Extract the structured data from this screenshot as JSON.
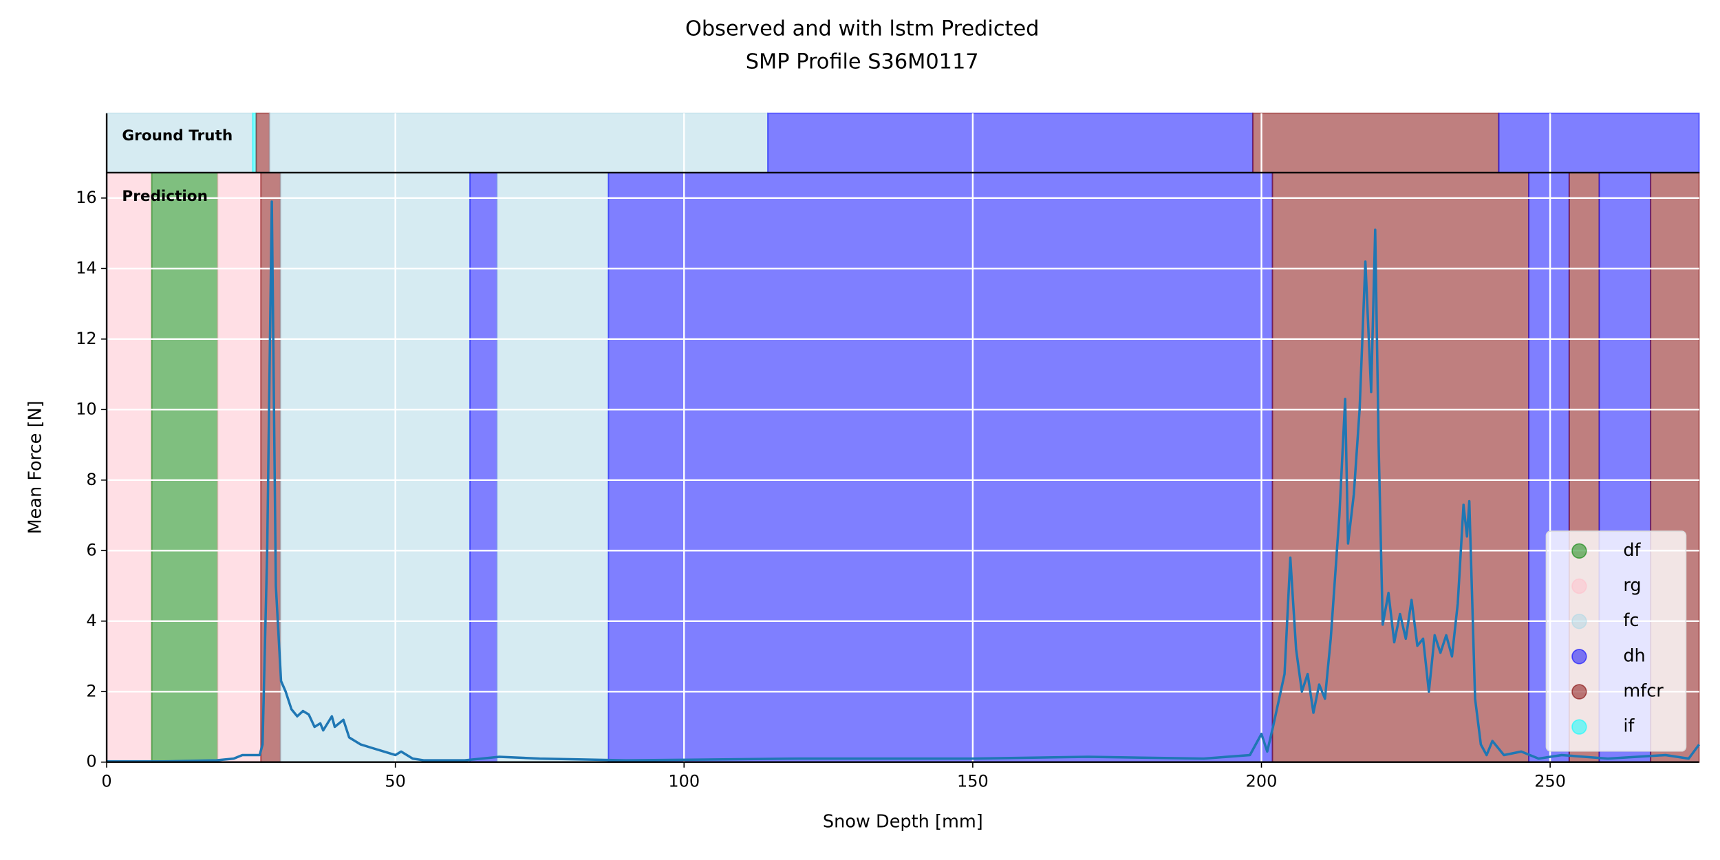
{
  "chart_data": {
    "type": "line",
    "title": "Observed and with lstm Predicted",
    "subtitle": "SMP Profile S36M0117",
    "x_label": "Snow Depth [mm]",
    "y_label": "Mean Force [N]",
    "xlim": [
      0,
      275.8
    ],
    "ylim": [
      0,
      16.72
    ],
    "xticks": [
      0,
      50,
      100,
      150,
      200,
      250
    ],
    "yticks": [
      0,
      2,
      4,
      6,
      8,
      10,
      12,
      14,
      16
    ],
    "grid": true,
    "legend_position": "lower right",
    "span_alpha": 0.5,
    "classes": [
      {
        "name": "df",
        "color": "#008000"
      },
      {
        "name": "rg",
        "color": "#ffc0cb"
      },
      {
        "name": "fc",
        "color": "#add8e6"
      },
      {
        "name": "dh",
        "color": "#0000ff"
      },
      {
        "name": "mfcr",
        "color": "#800000"
      },
      {
        "name": "if",
        "color": "#00ffff"
      }
    ],
    "ground_truth_label": "Ground Truth",
    "prediction_label": "Prediction",
    "ground_truth": [
      {
        "label": "fc",
        "start": 0,
        "end": 25.3
      },
      {
        "label": "if",
        "start": 25.3,
        "end": 25.9
      },
      {
        "label": "mfcr",
        "start": 25.9,
        "end": 28.2
      },
      {
        "label": "fc",
        "start": 28.2,
        "end": 114.5
      },
      {
        "label": "dh",
        "start": 114.5,
        "end": 198.5
      },
      {
        "label": "mfcr",
        "start": 198.5,
        "end": 241.1
      },
      {
        "label": "dh",
        "start": 241.1,
        "end": 275.8
      }
    ],
    "prediction": [
      {
        "label": "rg",
        "start": 0,
        "end": 7.8
      },
      {
        "label": "df",
        "start": 7.8,
        "end": 19.2
      },
      {
        "label": "rg",
        "start": 19.2,
        "end": 26.7
      },
      {
        "label": "mfcr",
        "start": 26.7,
        "end": 30.1
      },
      {
        "label": "fc",
        "start": 30.1,
        "end": 62.9
      },
      {
        "label": "dh",
        "start": 62.9,
        "end": 67.6
      },
      {
        "label": "fc",
        "start": 67.6,
        "end": 86.9
      },
      {
        "label": "dh",
        "start": 86.9,
        "end": 201.9
      },
      {
        "label": "mfcr",
        "start": 201.9,
        "end": 246.3
      },
      {
        "label": "dh",
        "start": 246.3,
        "end": 253.3
      },
      {
        "label": "mfcr",
        "start": 253.3,
        "end": 258.5
      },
      {
        "label": "dh",
        "start": 258.5,
        "end": 267.4
      },
      {
        "label": "mfcr",
        "start": 267.4,
        "end": 275.8
      }
    ],
    "line_color": "#1f77b4",
    "x": [
      0,
      10,
      19,
      22,
      23.5,
      26,
      26.5,
      27,
      27.8,
      28.6,
      29.3,
      30.2,
      31,
      32,
      33,
      34,
      35,
      36,
      37,
      37.5,
      39,
      39.5,
      41,
      42,
      44,
      46,
      48,
      50,
      51,
      53,
      55,
      62,
      68,
      75,
      90,
      120,
      150,
      170,
      190,
      198,
      200,
      201,
      202,
      204,
      205,
      206,
      207,
      208,
      209,
      210,
      211,
      212,
      213.5,
      214.5,
      215,
      216,
      217,
      218,
      219,
      219.7,
      220.3,
      221,
      222,
      223,
      224,
      225,
      226,
      227,
      228,
      229,
      230,
      231,
      232,
      233,
      234,
      235,
      235.6,
      236,
      237,
      238,
      239,
      240,
      242,
      245,
      248,
      252,
      260,
      270,
      274,
      275.8
    ],
    "values": [
      0.02,
      0.02,
      0.05,
      0.1,
      0.2,
      0.2,
      0.2,
      0.5,
      6,
      15.9,
      5,
      2.3,
      2.0,
      1.5,
      1.3,
      1.45,
      1.35,
      1.0,
      1.1,
      0.9,
      1.3,
      1.0,
      1.2,
      0.7,
      0.5,
      0.4,
      0.3,
      0.2,
      0.3,
      0.1,
      0.05,
      0.05,
      0.15,
      0.1,
      0.05,
      0.1,
      0.1,
      0.15,
      0.1,
      0.2,
      0.8,
      0.3,
      1.0,
      2.5,
      5.8,
      3.2,
      2.0,
      2.5,
      1.4,
      2.2,
      1.8,
      3.5,
      7,
      10.3,
      6.2,
      7.6,
      10,
      14.2,
      10.5,
      15.1,
      9,
      3.9,
      4.8,
      3.4,
      4.2,
      3.5,
      4.6,
      3.3,
      3.5,
      2.0,
      3.6,
      3.1,
      3.6,
      3.0,
      4.5,
      7.3,
      6.4,
      7.4,
      1.8,
      0.5,
      0.2,
      0.6,
      0.2,
      0.3,
      0.1,
      0.2,
      0.1,
      0.2,
      0.1,
      0.5
    ]
  }
}
